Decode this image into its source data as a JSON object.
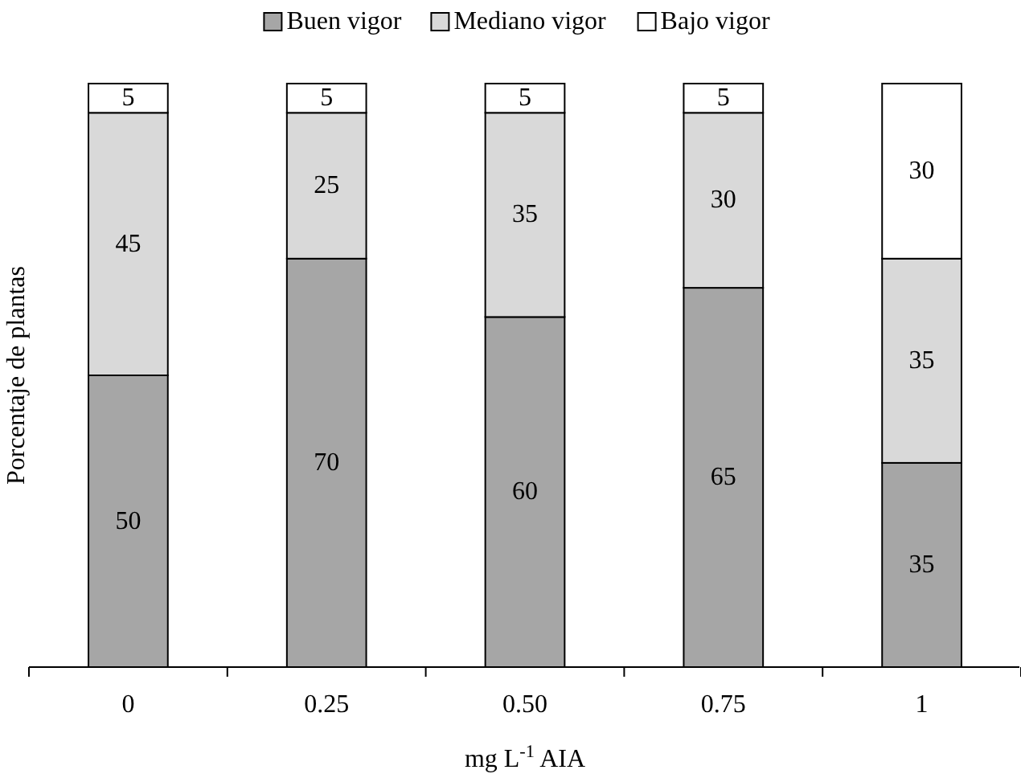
{
  "chart_data": {
    "type": "bar",
    "stacked": true,
    "xlabel": "mg L$^{-1}$ AIA",
    "ylabel": "Porcentaje de plantas",
    "categories": [
      "0",
      "0.25",
      "0.50",
      "0.75",
      "1"
    ],
    "series": [
      {
        "name": "Buen vigor",
        "color": "#a6a6a6",
        "values": [
          50,
          70,
          60,
          65,
          35
        ]
      },
      {
        "name": "Mediano vigor",
        "color": "#d9d9d9",
        "values": [
          45,
          25,
          35,
          30,
          35
        ]
      },
      {
        "name": "Bajo vigor",
        "color": "#ffffff",
        "values": [
          5,
          5,
          5,
          5,
          30
        ]
      }
    ],
    "data_labels": true,
    "legend": "top",
    "grid": false
  }
}
